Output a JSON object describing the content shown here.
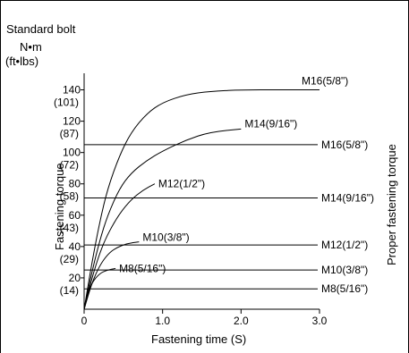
{
  "chart_data": {
    "type": "line",
    "title": "Standard bolt",
    "xlabel": "Fastening time (S)",
    "ylabel": "Fastening torque",
    "y2label": "Proper fastening torque",
    "y_unit": "N•m",
    "y_unit_secondary": "(ft•lbs)",
    "xlim": [
      0,
      3.0
    ],
    "ylim": [
      0,
      150
    ],
    "x_ticks": [
      {
        "value": 0,
        "label": "0"
      },
      {
        "value": 1.0,
        "label": "1.0"
      },
      {
        "value": 2.0,
        "label": "2.0"
      },
      {
        "value": 3.0,
        "label": "3.0"
      }
    ],
    "y_ticks": [
      {
        "value": 20,
        "label": "20",
        "label2": "(14)"
      },
      {
        "value": 40,
        "label": "40",
        "label2": "(29)"
      },
      {
        "value": 60,
        "label": "60",
        "label2": "(43)"
      },
      {
        "value": 80,
        "label": "80",
        "label2": "(58)"
      },
      {
        "value": 100,
        "label": "100",
        "label2": "(72)"
      },
      {
        "value": 120,
        "label": "120",
        "label2": "(87)"
      },
      {
        "value": 140,
        "label": "140",
        "label2": "(101)"
      }
    ],
    "series": [
      {
        "name": "M16(5/8\")",
        "x": [
          0,
          0.1,
          0.2,
          0.3,
          0.45,
          0.6,
          0.8,
          1.0,
          1.3,
          1.6,
          2.0,
          2.5,
          3.0
        ],
        "y": [
          0,
          30,
          56,
          77,
          98,
          113,
          125,
          132,
          137,
          139,
          140,
          140,
          140
        ]
      },
      {
        "name": "M14(9/16\")",
        "x": [
          0,
          0.1,
          0.2,
          0.3,
          0.45,
          0.6,
          0.8,
          1.0,
          1.3,
          1.6,
          2.0
        ],
        "y": [
          0,
          24,
          44,
          60,
          77,
          87,
          95,
          101,
          108,
          113,
          115
        ]
      },
      {
        "name": "M12(1/2\")",
        "x": [
          0,
          0.1,
          0.2,
          0.3,
          0.45,
          0.6,
          0.75,
          0.9
        ],
        "y": [
          0,
          20,
          36,
          48,
          61,
          70,
          76,
          80
        ]
      },
      {
        "name": "M10(3/8\")",
        "x": [
          0,
          0.1,
          0.2,
          0.3,
          0.4,
          0.55,
          0.7
        ],
        "y": [
          0,
          17,
          28,
          35,
          39,
          42,
          43
        ]
      },
      {
        "name": "M8(5/16\")",
        "x": [
          0,
          0.05,
          0.1,
          0.2,
          0.3,
          0.4
        ],
        "y": [
          0,
          10,
          17,
          23,
          25,
          26
        ]
      }
    ],
    "reference_lines": [
      {
        "label": "M16(5/8\")",
        "y": 105
      },
      {
        "label": "M14(9/16\")",
        "y": 71
      },
      {
        "label": "M12(1/2\")",
        "y": 41
      },
      {
        "label": "M10(3/8\")",
        "y": 25
      },
      {
        "label": "M8(5/16\")",
        "y": 13
      }
    ],
    "grid": false,
    "legend": "none"
  }
}
